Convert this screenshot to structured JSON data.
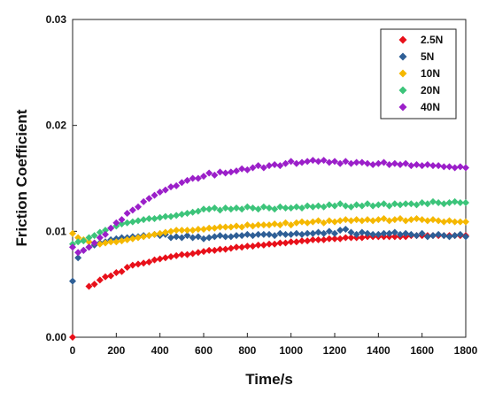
{
  "chart_data": {
    "type": "scatter",
    "xlabel": "Time/s",
    "ylabel": "Friction Coefficient",
    "xlim": [
      0,
      1800
    ],
    "ylim": [
      0,
      0.03
    ],
    "xticks": [
      "0",
      "200",
      "400",
      "600",
      "800",
      "1000",
      "1200",
      "1400",
      "1600",
      "1800"
    ],
    "yticks": [
      "0.00",
      "0.01",
      "0.02",
      "0.03"
    ],
    "grid": false,
    "legend_position": "top-right",
    "x": [
      0,
      25,
      50,
      75,
      100,
      125,
      150,
      175,
      200,
      225,
      250,
      275,
      300,
      325,
      350,
      375,
      400,
      425,
      450,
      475,
      500,
      525,
      550,
      575,
      600,
      625,
      650,
      675,
      700,
      725,
      750,
      775,
      800,
      825,
      850,
      875,
      900,
      925,
      950,
      975,
      1000,
      1025,
      1050,
      1075,
      1100,
      1125,
      1150,
      1175,
      1200,
      1225,
      1250,
      1275,
      1300,
      1325,
      1350,
      1375,
      1400,
      1425,
      1450,
      1475,
      1500,
      1525,
      1550,
      1575,
      1600,
      1625,
      1650,
      1675,
      1700,
      1725,
      1750,
      1775,
      1800
    ],
    "series": [
      {
        "name": "2.5N",
        "color": "#e8101a",
        "marker": "diamond",
        "values": [
          0.0,
          null,
          null,
          0.0048,
          0.005,
          0.0054,
          0.0057,
          0.0058,
          0.0061,
          0.0062,
          0.0066,
          0.0068,
          0.0069,
          0.007,
          0.0071,
          0.0073,
          0.0074,
          0.0075,
          0.0076,
          0.0077,
          0.0078,
          0.0078,
          0.0079,
          0.008,
          0.0081,
          0.0082,
          0.0082,
          0.0083,
          0.0083,
          0.0084,
          0.0085,
          0.0085,
          0.0086,
          0.0086,
          0.0087,
          0.0087,
          0.0088,
          0.0088,
          0.0089,
          0.0089,
          0.009,
          0.009,
          0.0091,
          0.0091,
          0.0092,
          0.0092,
          0.0092,
          0.0093,
          0.0093,
          0.0093,
          0.0094,
          0.0094,
          0.0094,
          0.0094,
          0.0095,
          0.0095,
          0.0095,
          0.0095,
          0.0095,
          0.0095,
          0.0095,
          0.0095,
          0.0096,
          0.0096,
          0.0096,
          0.0096,
          0.0096,
          0.0096,
          0.0096,
          0.0096,
          0.0096,
          0.0096,
          0.0096
        ]
      },
      {
        "name": "5N",
        "color": "#2f5f96",
        "marker": "diamond",
        "values": [
          0.0053,
          0.0075,
          0.0082,
          0.0085,
          0.0087,
          0.0089,
          0.009,
          0.0092,
          0.0093,
          0.0094,
          0.0094,
          0.0095,
          0.0095,
          0.0096,
          0.0096,
          0.0097,
          0.0096,
          0.0097,
          0.0094,
          0.0095,
          0.0094,
          0.0096,
          0.0094,
          0.0095,
          0.0093,
          0.0094,
          0.0095,
          0.0096,
          0.0095,
          0.0095,
          0.0096,
          0.0096,
          0.0097,
          0.0096,
          0.0097,
          0.0097,
          0.0097,
          0.0096,
          0.0098,
          0.0097,
          0.0097,
          0.0098,
          0.0097,
          0.0098,
          0.0098,
          0.0099,
          0.0098,
          0.01,
          0.0098,
          0.0101,
          0.0102,
          0.0099,
          0.0097,
          0.0099,
          0.0098,
          0.0097,
          0.0097,
          0.0098,
          0.0098,
          0.0099,
          0.0097,
          0.0098,
          0.0097,
          0.0096,
          0.0098,
          0.0095,
          0.0096,
          0.0097,
          0.0096,
          0.0095,
          0.0096,
          0.0097,
          0.0095
        ]
      },
      {
        "name": "10N",
        "color": "#f5b800",
        "marker": "diamond",
        "values": [
          0.0098,
          0.0094,
          0.0092,
          0.009,
          0.0089,
          0.0088,
          0.0089,
          0.009,
          0.009,
          0.0091,
          0.0092,
          0.0093,
          0.0094,
          0.0095,
          0.0096,
          0.0097,
          0.0098,
          0.0099,
          0.01,
          0.0101,
          0.0101,
          0.0101,
          0.0101,
          0.0102,
          0.0102,
          0.0103,
          0.0103,
          0.0104,
          0.0104,
          0.0104,
          0.0105,
          0.0104,
          0.0106,
          0.0105,
          0.0106,
          0.0106,
          0.0106,
          0.0107,
          0.0106,
          0.0108,
          0.0106,
          0.0108,
          0.0109,
          0.0108,
          0.0109,
          0.011,
          0.0108,
          0.011,
          0.0109,
          0.011,
          0.0111,
          0.011,
          0.0111,
          0.011,
          0.0111,
          0.011,
          0.0111,
          0.0112,
          0.011,
          0.0111,
          0.0112,
          0.011,
          0.0111,
          0.0112,
          0.0111,
          0.011,
          0.0111,
          0.011,
          0.0109,
          0.011,
          0.0109,
          0.0109,
          0.0109
        ]
      },
      {
        "name": "20N",
        "color": "#3cc47a",
        "marker": "diamond",
        "values": [
          0.0088,
          0.009,
          0.0091,
          0.0094,
          0.0096,
          0.0099,
          0.0101,
          0.0103,
          0.0105,
          0.0107,
          0.0108,
          0.0109,
          0.011,
          0.0111,
          0.0112,
          0.0112,
          0.0113,
          0.0114,
          0.0114,
          0.0115,
          0.0116,
          0.0117,
          0.0118,
          0.0119,
          0.0121,
          0.0121,
          0.0122,
          0.012,
          0.0122,
          0.0121,
          0.0122,
          0.0121,
          0.0123,
          0.0122,
          0.0121,
          0.0123,
          0.0122,
          0.0121,
          0.0123,
          0.0122,
          0.0122,
          0.0123,
          0.0122,
          0.0124,
          0.0123,
          0.0124,
          0.0123,
          0.0125,
          0.0124,
          0.0126,
          0.0124,
          0.0123,
          0.0125,
          0.0124,
          0.0126,
          0.0124,
          0.0125,
          0.0126,
          0.0124,
          0.0126,
          0.0125,
          0.0126,
          0.0126,
          0.0125,
          0.0127,
          0.0126,
          0.0128,
          0.0127,
          0.0126,
          0.0127,
          0.0128,
          0.0127,
          0.0127
        ]
      },
      {
        "name": "40N",
        "color": "#9b1fc9",
        "marker": "diamond",
        "values": [
          0.0085,
          0.008,
          0.0082,
          0.0085,
          0.0089,
          0.0094,
          0.0097,
          0.0103,
          0.0108,
          0.0111,
          0.0117,
          0.012,
          0.0123,
          0.0128,
          0.0131,
          0.0134,
          0.0137,
          0.0139,
          0.0142,
          0.0143,
          0.0146,
          0.0148,
          0.015,
          0.015,
          0.0152,
          0.0155,
          0.0153,
          0.0156,
          0.0155,
          0.0156,
          0.0157,
          0.0159,
          0.0158,
          0.016,
          0.0162,
          0.016,
          0.0162,
          0.0163,
          0.0162,
          0.0164,
          0.0166,
          0.0164,
          0.0165,
          0.0166,
          0.0167,
          0.0166,
          0.0167,
          0.0165,
          0.0166,
          0.0164,
          0.0166,
          0.0164,
          0.0165,
          0.0165,
          0.0164,
          0.0163,
          0.0164,
          0.0165,
          0.0163,
          0.0164,
          0.0163,
          0.0164,
          0.0162,
          0.0163,
          0.0162,
          0.0163,
          0.0162,
          0.0162,
          0.0161,
          0.0161,
          0.016,
          0.0161,
          0.016
        ]
      }
    ]
  }
}
